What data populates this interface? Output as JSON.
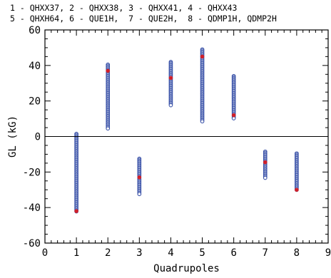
{
  "chart_data": {
    "type": "scatter",
    "title": "",
    "legend_lines": [
      "1 - QHXX37, 2 - QHXX38, 3 - QHXX41, 4 - QHXX43",
      "5 - QHXH64, 6 - QUE1H,  7 - QUE2H,  8 - QDMP1H, QDMP2H"
    ],
    "xlabel": "Quadrupoles",
    "ylabel": "GL (kG)",
    "xlim": [
      0,
      9
    ],
    "ylim": [
      -60,
      60
    ],
    "x_ticks": [
      0,
      1,
      2,
      3,
      4,
      5,
      6,
      7,
      8,
      9
    ],
    "y_ticks": [
      -60,
      -40,
      -20,
      0,
      20,
      40,
      60
    ],
    "zero_line": true,
    "point_color": "#3a52a8",
    "highlight_color": "#d0202a",
    "series": [
      {
        "x": 1,
        "ymin": -42.5,
        "ymax": 1.5,
        "highlight": -42
      },
      {
        "x": 2,
        "ymin": 4,
        "ymax": 40.5,
        "highlight": 37
      },
      {
        "x": 3,
        "ymin": -32.5,
        "ymax": -12.5,
        "highlight": -23
      },
      {
        "x": 4,
        "ymin": 17,
        "ymax": 42,
        "highlight": 33
      },
      {
        "x": 5,
        "ymin": 8.5,
        "ymax": 49,
        "highlight": 45
      },
      {
        "x": 6,
        "ymin": 10,
        "ymax": 34,
        "highlight": 12
      },
      {
        "x": 7,
        "ymin": -23.5,
        "ymax": -8.5,
        "highlight": -14.5
      },
      {
        "x": 8,
        "ymin": -30.5,
        "ymax": -9.5,
        "highlight": -30
      }
    ]
  }
}
